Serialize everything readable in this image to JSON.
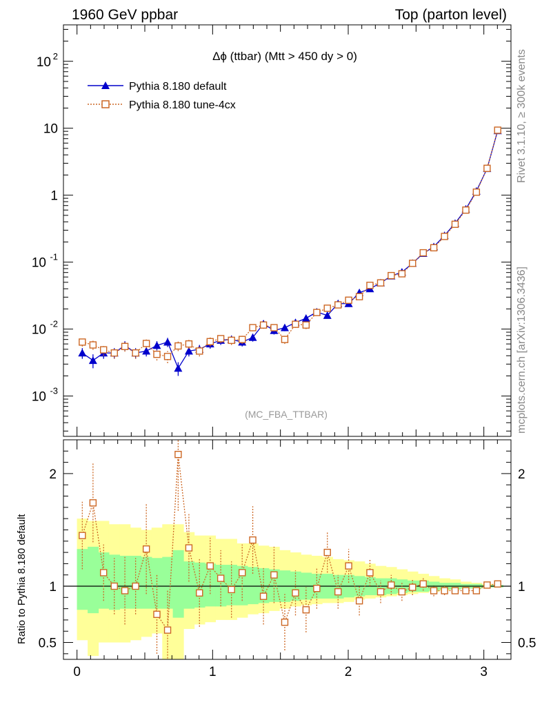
{
  "header": {
    "left": "1960 GeV ppbar",
    "right": "Top (parton level)"
  },
  "side_text": {
    "rivet": "Rivet 3.1.10, ≥ 300k events",
    "mcplots": "mcplots.cern.ch [arXiv:1306.3436]"
  },
  "chart_data": [
    {
      "type": "line",
      "title": "Δϕ (ttbar) (Mtt > 450 dy > 0)",
      "watermark": "(MC_FBA_TTBAR)",
      "yscale": "log",
      "xlim": [
        -0.1,
        3.2
      ],
      "ylim": [
        0.00025,
        350
      ],
      "legend_position": "top-left",
      "y_tick_labels": [
        "10^-3",
        "10^-2",
        "10^-1",
        "1",
        "10",
        "10^2"
      ],
      "x": [
        0.039,
        0.118,
        0.196,
        0.275,
        0.353,
        0.432,
        0.511,
        0.589,
        0.668,
        0.746,
        0.825,
        0.903,
        0.982,
        1.06,
        1.139,
        1.218,
        1.296,
        1.375,
        1.453,
        1.532,
        1.611,
        1.689,
        1.768,
        1.846,
        1.925,
        2.003,
        2.082,
        2.16,
        2.239,
        2.317,
        2.396,
        2.474,
        2.553,
        2.631,
        2.71,
        2.788,
        2.867,
        2.945,
        3.024,
        3.102
      ],
      "series": [
        {
          "name": "Pythia 8.180 default",
          "color": "#0000cc",
          "marker": "triangle",
          "values": [
            0.0044,
            0.0034,
            0.0044,
            0.0044,
            0.0057,
            0.0044,
            0.0047,
            0.0057,
            0.0064,
            0.0026,
            0.0047,
            0.005,
            0.006,
            0.0068,
            0.007,
            0.0064,
            0.0075,
            0.012,
            0.0095,
            0.0105,
            0.0125,
            0.0145,
            0.018,
            0.016,
            0.024,
            0.024,
            0.035,
            0.04,
            0.049,
            0.062,
            0.071,
            0.096,
            0.135,
            0.17,
            0.25,
            0.38,
            0.62,
            1.15,
            2.5,
            9.2
          ],
          "errors": [
            0.0008,
            0.0008,
            0.0008,
            0.0008,
            0.0009,
            0.0008,
            0.0008,
            0.0009,
            0.001,
            0.0006,
            0.0008,
            0.0008,
            0.0009,
            0.001,
            0.001,
            0.0009,
            0.001,
            0.0014,
            0.0012,
            0.0012,
            0.0014,
            0.0015,
            0.0016,
            0.0015,
            0.002,
            0.002,
            0.0025,
            0.0028,
            0.003,
            0.0035,
            0.004,
            0.005,
            0.006,
            0.007,
            0.009,
            0.012,
            0.015,
            0.025,
            0.04,
            0.08
          ]
        },
        {
          "name": "Pythia 8.180 tune-4cx",
          "color": "#cc6622",
          "marker": "open-square",
          "values": [
            0.0064,
            0.0058,
            0.0049,
            0.0044,
            0.0055,
            0.0044,
            0.0061,
            0.0042,
            0.0039,
            0.0056,
            0.006,
            0.0047,
            0.0065,
            0.0072,
            0.0068,
            0.007,
            0.0105,
            0.0115,
            0.0105,
            0.007,
            0.0118,
            0.0115,
            0.0177,
            0.0205,
            0.023,
            0.027,
            0.0305,
            0.045,
            0.049,
            0.063,
            0.067,
            0.096,
            0.138,
            0.164,
            0.242,
            0.368,
            0.599,
            1.11,
            2.52,
            9.35
          ],
          "errors": [
            0.0009,
            0.0009,
            0.0009,
            0.0008,
            0.0009,
            0.0008,
            0.0009,
            0.0008,
            0.0008,
            0.0009,
            0.0009,
            0.0008,
            0.001,
            0.001,
            0.001,
            0.001,
            0.0012,
            0.0014,
            0.0012,
            0.001,
            0.0014,
            0.0015,
            0.0016,
            0.0017,
            0.002,
            0.002,
            0.0025,
            0.0028,
            0.003,
            0.0035,
            0.004,
            0.005,
            0.006,
            0.007,
            0.009,
            0.012,
            0.015,
            0.025,
            0.04,
            0.08
          ]
        }
      ]
    },
    {
      "type": "line",
      "ylabel": "Ratio to Pythia 8.180 default",
      "ylim": [
        0.35,
        2.3
      ],
      "xlim": [
        -0.1,
        3.2
      ],
      "x_tick_labels": [
        "0",
        "1",
        "2",
        "3"
      ],
      "y_tick_labels": [
        "0.5",
        "1",
        "2"
      ],
      "x": [
        0.039,
        0.118,
        0.196,
        0.275,
        0.353,
        0.432,
        0.511,
        0.589,
        0.668,
        0.746,
        0.825,
        0.903,
        0.982,
        1.06,
        1.139,
        1.218,
        1.296,
        1.375,
        1.453,
        1.532,
        1.611,
        1.689,
        1.768,
        1.846,
        1.925,
        2.003,
        2.082,
        2.16,
        2.239,
        2.317,
        2.396,
        2.474,
        2.553,
        2.631,
        2.71,
        2.788,
        2.867,
        2.945,
        3.024,
        3.102
      ],
      "bands": {
        "yellow": {
          "lower": [
            0.52,
            0.38,
            0.5,
            0.5,
            0.5,
            0.52,
            0.55,
            0.58,
            0.25,
            0.25,
            0.62,
            0.66,
            0.68,
            0.7,
            0.7,
            0.72,
            0.75,
            0.76,
            0.78,
            0.8,
            0.82,
            0.83,
            0.84,
            0.85,
            0.85,
            0.86,
            0.88,
            0.89,
            0.9,
            0.91,
            0.92,
            0.93,
            0.94,
            0.95,
            0.96,
            0.97,
            0.98,
            0.98,
            0.99,
            0.99
          ],
          "upper": [
            1.6,
            1.58,
            1.58,
            1.55,
            1.55,
            1.52,
            1.5,
            1.52,
            1.55,
            1.55,
            1.48,
            1.45,
            1.45,
            1.42,
            1.42,
            1.38,
            1.38,
            1.36,
            1.35,
            1.32,
            1.3,
            1.28,
            1.27,
            1.26,
            1.24,
            1.23,
            1.22,
            1.2,
            1.18,
            1.17,
            1.15,
            1.13,
            1.11,
            1.09,
            1.07,
            1.06,
            1.04,
            1.03,
            1.02,
            1.01
          ]
        },
        "green": {
          "lower": [
            0.79,
            0.76,
            0.8,
            0.79,
            0.8,
            0.8,
            0.8,
            0.8,
            0.8,
            0.72,
            0.8,
            0.81,
            0.82,
            0.82,
            0.83,
            0.83,
            0.84,
            0.85,
            0.86,
            0.86,
            0.87,
            0.88,
            0.89,
            0.89,
            0.89,
            0.9,
            0.91,
            0.92,
            0.92,
            0.93,
            0.94,
            0.95,
            0.95,
            0.96,
            0.97,
            0.97,
            0.98,
            0.98,
            0.99,
            0.99
          ],
          "upper": [
            1.33,
            1.35,
            1.3,
            1.28,
            1.27,
            1.27,
            1.26,
            1.25,
            1.26,
            1.32,
            1.22,
            1.21,
            1.2,
            1.19,
            1.19,
            1.18,
            1.17,
            1.16,
            1.15,
            1.14,
            1.13,
            1.12,
            1.11,
            1.11,
            1.1,
            1.1,
            1.09,
            1.08,
            1.07,
            1.07,
            1.06,
            1.05,
            1.05,
            1.04,
            1.03,
            1.03,
            1.02,
            1.02,
            1.01,
            1.01
          ]
        }
      },
      "series": [
        {
          "name": "Pythia 8.180 tune-4cx",
          "color": "#cc6622",
          "marker": "open-square",
          "values": [
            1.45,
            1.74,
            1.12,
            1.0,
            0.96,
            1.0,
            1.33,
            0.75,
            0.61,
            2.17,
            1.34,
            0.94,
            1.18,
            1.07,
            0.97,
            1.12,
            1.41,
            0.91,
            1.1,
            0.68,
            0.94,
            0.79,
            0.98,
            1.3,
            0.95,
            1.18,
            0.87,
            1.12,
            0.95,
            1.01,
            0.95,
            0.99,
            1.02,
            0.96,
            0.96,
            0.96,
            0.96,
            0.96,
            1.01,
            1.02
          ],
          "errors": [
            0.3,
            0.35,
            0.25,
            0.25,
            0.3,
            0.25,
            0.4,
            0.35,
            0.35,
            0.5,
            0.3,
            0.3,
            0.25,
            0.25,
            0.25,
            0.25,
            0.3,
            0.25,
            0.25,
            0.25,
            0.2,
            0.2,
            0.18,
            0.18,
            0.15,
            0.15,
            0.13,
            0.12,
            0.1,
            0.09,
            0.08,
            0.07,
            0.06,
            0.05,
            0.04,
            0.03,
            0.02,
            0.02,
            0.01,
            0.01
          ]
        }
      ]
    }
  ]
}
